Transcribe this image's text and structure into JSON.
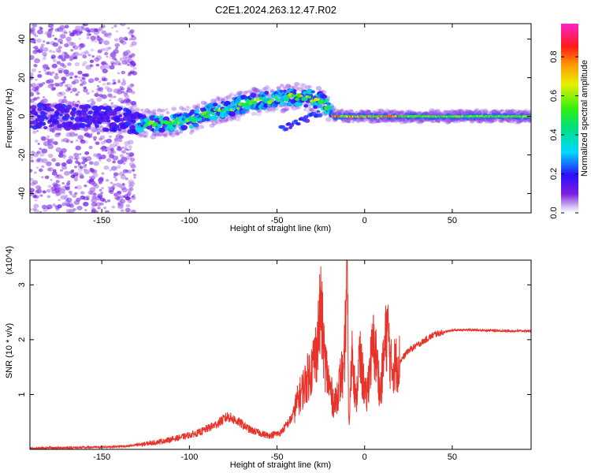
{
  "figure_title": "C2E1.2024.263.12.47.R02",
  "colors": {
    "snr_line": "#e8332a",
    "frame": "#000000",
    "background": "#ffffff"
  },
  "chart_data": [
    {
      "type": "heatmap",
      "title": "",
      "xlabel": "Height of straight line (km)",
      "ylabel": "Frequency (Hz)",
      "xlim": [
        -191,
        95
      ],
      "ylim": [
        -50,
        48
      ],
      "xticks": [
        -150,
        -100,
        -50,
        0,
        50
      ],
      "yticks": [
        -40,
        -20,
        0,
        20,
        40
      ],
      "grid": false,
      "colorscale": "rainbow (purple-blue-cyan-green-yellow-red-magenta)",
      "colorbar": {
        "label": "Normalized spectral amplitude",
        "range": [
          0,
          0.97
        ],
        "ticks": [
          0.0,
          0.2,
          0.4,
          0.6,
          0.8
        ]
      },
      "ridge": {
        "description": "dominant Doppler frequency trace",
        "x": [
          -190,
          -170,
          -150,
          -135,
          -125,
          -110,
          -100,
          -90,
          -80,
          -70,
          -60,
          -50,
          -40,
          -30,
          -25,
          -20,
          -15,
          -10,
          -5,
          0,
          10,
          20,
          40,
          60,
          80,
          95
        ],
        "y": [
          0,
          0,
          -1,
          -2,
          -4,
          -3,
          -2,
          1,
          4,
          6,
          8,
          9,
          10,
          9,
          8,
          3,
          1,
          0,
          0,
          0,
          0,
          0,
          0,
          0,
          0,
          0
        ]
      }
    },
    {
      "type": "line",
      "title": "",
      "xlabel": "Height of straight line (km)",
      "ylabel": "SNR (10 * v/v)",
      "y_scale_note": "(x10^4)",
      "xlim": [
        -191,
        95
      ],
      "ylim": [
        0,
        3.45
      ],
      "xticks": [
        -150,
        -100,
        -50,
        0,
        50
      ],
      "yticks": [
        1,
        2,
        3
      ],
      "grid": false,
      "series": [
        {
          "x": [
            -190,
            -170,
            -150,
            -135,
            -125,
            -115,
            -105,
            -95,
            -85,
            -78,
            -72,
            -65,
            -55,
            -48,
            -42,
            -38,
            -34,
            -30,
            -27,
            -25,
            -23,
            -21,
            -19,
            -17,
            -15,
            -13,
            -12,
            -11,
            -10,
            -9,
            -7,
            -5,
            -3,
            -1,
            1,
            3,
            5,
            7,
            9,
            11,
            13,
            15,
            20,
            25,
            30,
            35,
            40,
            50,
            60,
            70,
            80,
            95
          ],
          "y": [
            0.02,
            0.03,
            0.04,
            0.06,
            0.1,
            0.15,
            0.22,
            0.3,
            0.45,
            0.6,
            0.5,
            0.35,
            0.25,
            0.3,
            0.55,
            0.9,
            1.2,
            1.5,
            1.9,
            2.6,
            1.7,
            1.3,
            1.0,
            0.8,
            1.1,
            1.4,
            1.2,
            2.2,
            3.45,
            0.4,
            1.9,
            0.8,
            1.7,
            1.3,
            0.9,
            1.5,
            1.9,
            1.6,
            1.0,
            1.7,
            2.25,
            1.5,
            1.6,
            1.8,
            1.9,
            2.0,
            2.1,
            2.17,
            2.18,
            2.17,
            2.16,
            2.16
          ]
        }
      ]
    }
  ]
}
